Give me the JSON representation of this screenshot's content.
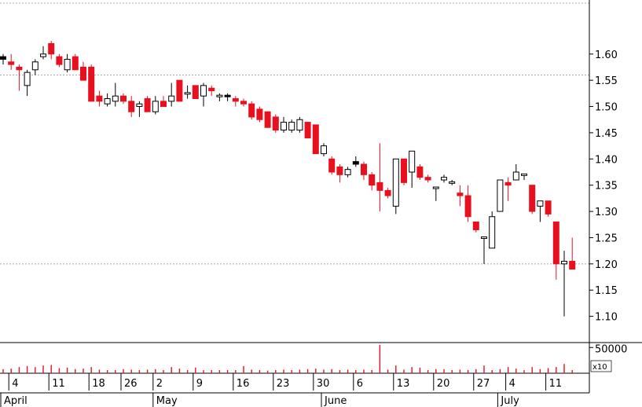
{
  "chart_data": {
    "type": "candlestick",
    "title": "",
    "xlabel": "",
    "ylabel": "",
    "ylim": [
      1.05,
      1.7
    ],
    "y_ticks": [
      "1.10",
      "1.15",
      "1.20",
      "1.25",
      "1.30",
      "1.35",
      "1.40",
      "1.45",
      "1.50",
      "1.55",
      "1.60"
    ],
    "reference_lines": [
      1.2,
      1.56
    ],
    "grid": false,
    "up_color": "#ffffff",
    "down_color": "#e8101e",
    "outline_color": "#000000",
    "volume_color": "#e8101e",
    "volume_axis": {
      "tick": "50000",
      "multiplier": "x10",
      "ylim": [
        0,
        55000
      ]
    },
    "x_day_labels": [
      {
        "text": "4",
        "index": 1
      },
      {
        "text": "11",
        "index": 6
      },
      {
        "text": "18",
        "index": 11
      },
      {
        "text": "26",
        "index": 15
      },
      {
        "text": "2",
        "index": 19
      },
      {
        "text": "9",
        "index": 24
      },
      {
        "text": "16",
        "index": 29
      },
      {
        "text": "23",
        "index": 34
      },
      {
        "text": "30",
        "index": 39
      },
      {
        "text": "6",
        "index": 44
      },
      {
        "text": "13",
        "index": 49
      },
      {
        "text": "20",
        "index": 54
      },
      {
        "text": "27",
        "index": 59
      },
      {
        "text": "4",
        "index": 63
      },
      {
        "text": "11",
        "index": 68
      }
    ],
    "x_month_labels": [
      {
        "text": "April",
        "index": 0
      },
      {
        "text": "May",
        "index": 19
      },
      {
        "text": "June",
        "index": 40
      },
      {
        "text": "July",
        "index": 62
      }
    ],
    "candles": [
      {
        "o": 1.59,
        "h": 1.6,
        "l": 1.58,
        "c": 1.595,
        "v": 8000,
        "filled": true
      },
      {
        "o": 1.585,
        "h": 1.6,
        "l": 1.57,
        "c": 1.58,
        "v": 9000
      },
      {
        "o": 1.575,
        "h": 1.58,
        "l": 1.53,
        "c": 1.57,
        "v": 12000
      },
      {
        "o": 1.54,
        "h": 1.57,
        "l": 1.52,
        "c": 1.565,
        "v": 14000
      },
      {
        "o": 1.57,
        "h": 1.59,
        "l": 1.56,
        "c": 1.585,
        "v": 12000
      },
      {
        "o": 1.595,
        "h": 1.615,
        "l": 1.59,
        "c": 1.6,
        "v": 15000
      },
      {
        "o": 1.62,
        "h": 1.625,
        "l": 1.59,
        "c": 1.6,
        "v": 16000
      },
      {
        "o": 1.595,
        "h": 1.6,
        "l": 1.575,
        "c": 1.58,
        "v": 10000
      },
      {
        "o": 1.57,
        "h": 1.6,
        "l": 1.565,
        "c": 1.59,
        "v": 11000
      },
      {
        "o": 1.595,
        "h": 1.6,
        "l": 1.57,
        "c": 1.57,
        "v": 8000
      },
      {
        "o": 1.575,
        "h": 1.585,
        "l": 1.55,
        "c": 1.55,
        "v": 9000
      },
      {
        "o": 1.575,
        "h": 1.58,
        "l": 1.51,
        "c": 1.51,
        "v": 12000
      },
      {
        "o": 1.52,
        "h": 1.53,
        "l": 1.5,
        "c": 1.51,
        "v": 7000
      },
      {
        "o": 1.505,
        "h": 1.525,
        "l": 1.5,
        "c": 1.515,
        "v": 6000
      },
      {
        "o": 1.51,
        "h": 1.545,
        "l": 1.5,
        "c": 1.52,
        "v": 6000
      },
      {
        "o": 1.52,
        "h": 1.525,
        "l": 1.505,
        "c": 1.51,
        "v": 8000
      },
      {
        "o": 1.51,
        "h": 1.52,
        "l": 1.48,
        "c": 1.49,
        "v": 7000
      },
      {
        "o": 1.5,
        "h": 1.51,
        "l": 1.48,
        "c": 1.505,
        "v": 6000
      },
      {
        "o": 1.515,
        "h": 1.52,
        "l": 1.49,
        "c": 1.49,
        "v": 7000
      },
      {
        "o": 1.49,
        "h": 1.52,
        "l": 1.485,
        "c": 1.51,
        "v": 8000
      },
      {
        "o": 1.51,
        "h": 1.52,
        "l": 1.5,
        "c": 1.5,
        "v": 6000
      },
      {
        "o": 1.51,
        "h": 1.545,
        "l": 1.5,
        "c": 1.52,
        "v": 12000
      },
      {
        "o": 1.55,
        "h": 1.55,
        "l": 1.51,
        "c": 1.51,
        "v": 9000
      },
      {
        "o": 1.525,
        "h": 1.54,
        "l": 1.515,
        "c": 1.525,
        "v": 6000
      },
      {
        "o": 1.54,
        "h": 1.54,
        "l": 1.515,
        "c": 1.515,
        "v": 11000
      },
      {
        "o": 1.52,
        "h": 1.545,
        "l": 1.5,
        "c": 1.54,
        "v": 6000
      },
      {
        "o": 1.535,
        "h": 1.54,
        "l": 1.52,
        "c": 1.53,
        "v": 6000
      },
      {
        "o": 1.52,
        "h": 1.525,
        "l": 1.51,
        "c": 1.52,
        "v": 6000
      },
      {
        "o": 1.52,
        "h": 1.525,
        "l": 1.51,
        "c": 1.52,
        "v": 6000,
        "filled": true
      },
      {
        "o": 1.515,
        "h": 1.52,
        "l": 1.5,
        "c": 1.51,
        "v": 6000
      },
      {
        "o": 1.51,
        "h": 1.515,
        "l": 1.5,
        "c": 1.505,
        "v": 14000
      },
      {
        "o": 1.505,
        "h": 1.51,
        "l": 1.475,
        "c": 1.48,
        "v": 7000
      },
      {
        "o": 1.495,
        "h": 1.5,
        "l": 1.47,
        "c": 1.475,
        "v": 6000
      },
      {
        "o": 1.49,
        "h": 1.49,
        "l": 1.46,
        "c": 1.46,
        "v": 5000
      },
      {
        "o": 1.48,
        "h": 1.485,
        "l": 1.45,
        "c": 1.455,
        "v": 6000
      },
      {
        "o": 1.455,
        "h": 1.48,
        "l": 1.45,
        "c": 1.47,
        "v": 7000
      },
      {
        "o": 1.455,
        "h": 1.475,
        "l": 1.45,
        "c": 1.47,
        "v": 6000
      },
      {
        "o": 1.455,
        "h": 1.48,
        "l": 1.45,
        "c": 1.475,
        "v": 7000
      },
      {
        "o": 1.47,
        "h": 1.47,
        "l": 1.44,
        "c": 1.44,
        "v": 8000
      },
      {
        "o": 1.465,
        "h": 1.465,
        "l": 1.41,
        "c": 1.41,
        "v": 9000
      },
      {
        "o": 1.41,
        "h": 1.43,
        "l": 1.405,
        "c": 1.425,
        "v": 7000
      },
      {
        "o": 1.4,
        "h": 1.405,
        "l": 1.37,
        "c": 1.375,
        "v": 8000
      },
      {
        "o": 1.385,
        "h": 1.39,
        "l": 1.355,
        "c": 1.37,
        "v": 6000
      },
      {
        "o": 1.37,
        "h": 1.385,
        "l": 1.365,
        "c": 1.38,
        "v": 7000
      },
      {
        "o": 1.39,
        "h": 1.405,
        "l": 1.385,
        "c": 1.395,
        "v": 6000,
        "filled": true
      },
      {
        "o": 1.39,
        "h": 1.395,
        "l": 1.36,
        "c": 1.37,
        "v": 7000
      },
      {
        "o": 1.37,
        "h": 1.375,
        "l": 1.34,
        "c": 1.35,
        "v": 6000
      },
      {
        "o": 1.355,
        "h": 1.43,
        "l": 1.3,
        "c": 1.34,
        "v": 55000
      },
      {
        "o": 1.34,
        "h": 1.345,
        "l": 1.325,
        "c": 1.33,
        "v": 7000
      },
      {
        "o": 1.31,
        "h": 1.4,
        "l": 1.295,
        "c": 1.4,
        "v": 15000
      },
      {
        "o": 1.4,
        "h": 1.4,
        "l": 1.35,
        "c": 1.355,
        "v": 7000
      },
      {
        "o": 1.375,
        "h": 1.415,
        "l": 1.345,
        "c": 1.415,
        "v": 12000
      },
      {
        "o": 1.385,
        "h": 1.39,
        "l": 1.36,
        "c": 1.365,
        "v": 11000
      },
      {
        "o": 1.365,
        "h": 1.37,
        "l": 1.355,
        "c": 1.36,
        "v": 6000
      },
      {
        "o": 1.345,
        "h": 1.345,
        "l": 1.32,
        "c": 1.345,
        "v": 8000
      },
      {
        "o": 1.36,
        "h": 1.37,
        "l": 1.355,
        "c": 1.365,
        "v": 8000
      },
      {
        "o": 1.355,
        "h": 1.36,
        "l": 1.35,
        "c": 1.355,
        "v": 6000
      },
      {
        "o": 1.335,
        "h": 1.35,
        "l": 1.31,
        "c": 1.33,
        "v": 7000
      },
      {
        "o": 1.33,
        "h": 1.35,
        "l": 1.28,
        "c": 1.29,
        "v": 6000
      },
      {
        "o": 1.28,
        "h": 1.28,
        "l": 1.26,
        "c": 1.265,
        "v": 8000
      },
      {
        "o": 1.25,
        "h": 1.25,
        "l": 1.2,
        "c": 1.25,
        "v": 15000
      },
      {
        "o": 1.23,
        "h": 1.3,
        "l": 1.23,
        "c": 1.29,
        "v": 6000
      },
      {
        "o": 1.3,
        "h": 1.36,
        "l": 1.3,
        "c": 1.36,
        "v": 8000
      },
      {
        "o": 1.355,
        "h": 1.365,
        "l": 1.32,
        "c": 1.35,
        "v": 12000
      },
      {
        "o": 1.36,
        "h": 1.39,
        "l": 1.36,
        "c": 1.375,
        "v": 9000
      },
      {
        "o": 1.37,
        "h": 1.37,
        "l": 1.36,
        "c": 1.37,
        "v": 6000
      },
      {
        "o": 1.35,
        "h": 1.35,
        "l": 1.295,
        "c": 1.3,
        "v": 12000
      },
      {
        "o": 1.31,
        "h": 1.32,
        "l": 1.28,
        "c": 1.32,
        "v": 8000
      },
      {
        "o": 1.32,
        "h": 1.32,
        "l": 1.29,
        "c": 1.295,
        "v": 10000
      },
      {
        "o": 1.28,
        "h": 1.28,
        "l": 1.17,
        "c": 1.2,
        "v": 12000
      },
      {
        "o": 1.2,
        "h": 1.225,
        "l": 1.1,
        "c": 1.205,
        "v": 18000
      },
      {
        "o": 1.205,
        "h": 1.25,
        "l": 1.19,
        "c": 1.19,
        "v": 6000
      }
    ]
  }
}
